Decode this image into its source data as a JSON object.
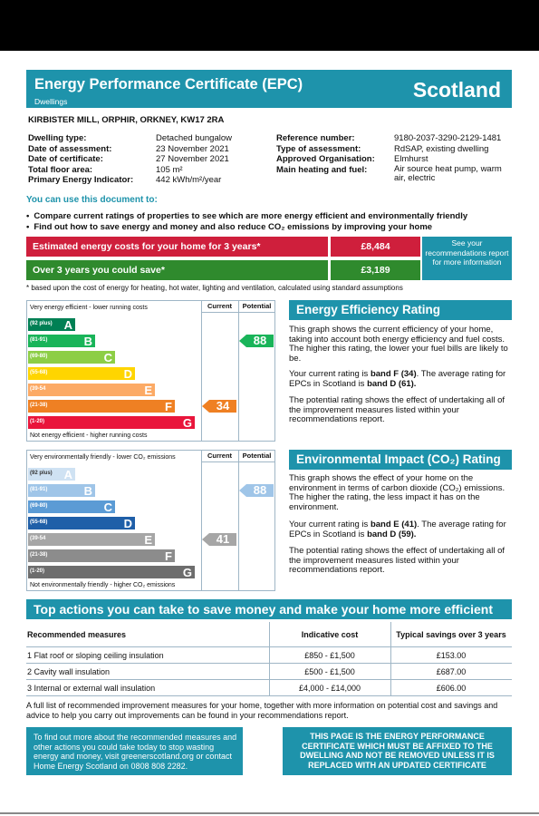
{
  "header": {
    "title": "Energy Performance Certificate (EPC)",
    "subtitle": "Dwellings",
    "region": "Scotland"
  },
  "address": "KIRBISTER MILL, ORPHIR, ORKNEY, KW17 2RA",
  "details_left": {
    "labels": [
      "Dwelling type:",
      "Date of assessment:",
      "Date of certificate:",
      "Total floor area:",
      "Primary Energy Indicator:"
    ],
    "values": [
      "Detached bungalow",
      "23 November 2021",
      "27 November 2021",
      "105 m²",
      "442 kWh/m²/year"
    ]
  },
  "details_right": {
    "labels": [
      "Reference number:",
      "Type of assessment:",
      "Approved Organisation:",
      "Main heating and fuel:"
    ],
    "values": [
      "9180-2037-3290-2129-1481",
      "RdSAP, existing dwelling",
      "Elmhurst",
      "Air source heat pump, warm air, electric"
    ]
  },
  "use_doc": {
    "heading": "You can use this document to:",
    "bullets": [
      "Compare current ratings of properties to see which are more energy efficient and environmentally friendly",
      "Find out how to save energy and money and also reduce CO₂ emissions by improving your home"
    ]
  },
  "costs": {
    "estimated_label": "Estimated energy costs for your home for 3 years*",
    "estimated_value": "£8,484",
    "save_label": "Over 3 years you could save*",
    "save_value": "£3,189",
    "see_recs": "See your recommendations report for more information",
    "footnote": "* based upon the cost of energy for heating, hot water, lighting and ventilation, calculated using standard assumptions"
  },
  "energy_chart": {
    "top_label": "Very energy efficient - lower running costs",
    "bottom_label": "Not energy efficient - higher running costs",
    "col_current": "Current",
    "col_potential": "Potential",
    "bands": [
      {
        "range": "(92 plus)",
        "letter": "A",
        "color": "#008054"
      },
      {
        "range": "(81-91)",
        "letter": "B",
        "color": "#19b459"
      },
      {
        "range": "(69-80)",
        "letter": "C",
        "color": "#8dce46"
      },
      {
        "range": "(55-68)",
        "letter": "D",
        "color": "#ffd500"
      },
      {
        "range": "(39-54",
        "letter": "E",
        "color": "#fcaa65"
      },
      {
        "range": "(21-38)",
        "letter": "F",
        "color": "#ef8023"
      },
      {
        "range": "(1-20)",
        "letter": "G",
        "color": "#e9153b"
      }
    ],
    "current": {
      "value": "34",
      "band": "F",
      "color": "#ef8023"
    },
    "potential": {
      "value": "88",
      "band": "B",
      "color": "#19b459"
    }
  },
  "env_chart": {
    "top_label": "Very environmentally friendly - lower CO₂ emissions",
    "bottom_label": "Not environmentally friendly - higher CO₂ emissions",
    "col_current": "Current",
    "col_potential": "Potential",
    "bands": [
      {
        "range": "(92 plus)",
        "letter": "A",
        "color": "#cfe2f3"
      },
      {
        "range": "(81-91)",
        "letter": "B",
        "color": "#9fc5e8"
      },
      {
        "range": "(69-80)",
        "letter": "C",
        "color": "#5b9bd5"
      },
      {
        "range": "(55-68)",
        "letter": "D",
        "color": "#1f5fa8"
      },
      {
        "range": "(39-54",
        "letter": "E",
        "color": "#a6a6a6"
      },
      {
        "range": "(21-38)",
        "letter": "F",
        "color": "#8c8c8c"
      },
      {
        "range": "(1-20)",
        "letter": "G",
        "color": "#6d6d6d"
      }
    ],
    "current": {
      "value": "41",
      "band": "E",
      "color": "#a6a6a6"
    },
    "potential": {
      "value": "88",
      "band": "B",
      "color": "#9fc5e8"
    }
  },
  "eer": {
    "title": "Energy Efficiency Rating",
    "p1": "This graph shows the current efficiency of your home, taking into account both energy efficiency and fuel costs. The higher this rating, the lower your fuel bills are likely to be.",
    "p2a": "Your current rating is ",
    "p2b": "band F (34)",
    "p2c": ". The average rating for EPCs in Scotland is ",
    "p2d": "band D (61).",
    "p3": "The potential rating shows the effect of undertaking all of the improvement measures listed within your recommendations report."
  },
  "eir": {
    "title": "Environmental Impact (CO₂) Rating",
    "p1": "This graph shows the effect of your home on the environment in terms of carbon dioxide (CO₂) emissions. The higher the rating, the less impact it has on the environment.",
    "p2a": "Your current rating is ",
    "p2b": "band E (41)",
    "p2c": ". The average rating for EPCs in Scotland is ",
    "p2d": "band D (59).",
    "p3": "The potential rating shows the effect of undertaking all of the improvement measures listed within your recommendations report."
  },
  "actions": {
    "title": "Top actions you can take to save money and make your home more efficient",
    "headers": [
      "Recommended measures",
      "Indicative cost",
      "Typical savings over 3 years"
    ],
    "rows": [
      [
        "1 Flat roof or sloping ceiling insulation",
        "£850 - £1,500",
        "£153.00"
      ],
      [
        "2 Cavity wall insulation",
        "£500 - £1,500",
        "£687.00"
      ],
      [
        "3 Internal or external wall insulation",
        "£4,000 - £14,000",
        "£606.00"
      ]
    ]
  },
  "full_list": "A full list of recommended improvement measures for your home, together with more information on potential cost and savings and advice to help you carry out improvements can be found in your recommendations report.",
  "find_out": "To find out more about the recommended measures and other actions you could take today to stop wasting energy and money, visit greenerscotland.org or contact Home Energy Scotland on 0808 808 2282.",
  "affix": "THIS PAGE IS THE ENERGY PERFORMANCE CERTIFICATE WHICH MUST BE AFFIXED TO THE DWELLING AND NOT BE REMOVED UNLESS IT IS REPLACED WITH AN UPDATED CERTIFICATE"
}
